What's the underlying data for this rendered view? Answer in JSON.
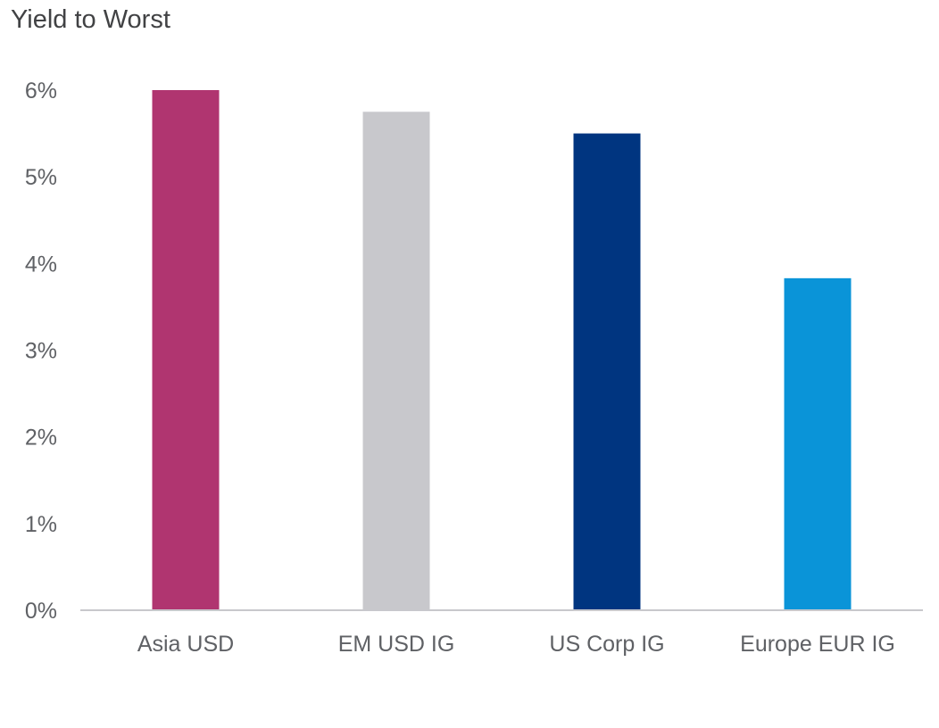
{
  "chart_data": {
    "type": "bar",
    "title": "Yield to Worst",
    "xlabel": "",
    "ylabel": "",
    "ylim": [
      0,
      6
    ],
    "yticks": [
      0,
      1,
      2,
      3,
      4,
      5,
      6
    ],
    "ytick_labels": [
      "0%",
      "1%",
      "2%",
      "3%",
      "4%",
      "5%",
      "6%"
    ],
    "categories": [
      "Asia USD",
      "EM USD IG",
      "US Corp IG",
      "Europe EUR IG"
    ],
    "values": [
      6.0,
      5.75,
      5.5,
      3.83
    ],
    "colors": [
      "#b03570",
      "#c8c8cc",
      "#003580",
      "#0a94d8"
    ],
    "grid": false,
    "legend": "none"
  }
}
